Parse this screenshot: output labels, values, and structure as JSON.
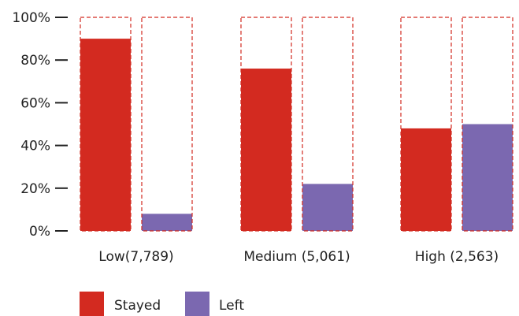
{
  "chart_data": {
    "type": "bar",
    "categories": [
      "Low(7,789)",
      "Medium (5,061)",
      "High (2,563)"
    ],
    "series": [
      {
        "name": "Stayed",
        "color": "#d32a20",
        "values": [
          90,
          76,
          48
        ]
      },
      {
        "name": "Left",
        "color": "#7b68b0",
        "values": [
          8,
          22,
          50
        ]
      }
    ],
    "ylim": [
      0,
      100
    ],
    "yticks": [
      "0%",
      "20%",
      "40%",
      "60%",
      "80%",
      "100%"
    ],
    "outline_color": "#d32a20",
    "outline_style": "dashed",
    "grid": false,
    "legend_position": "bottom-left"
  }
}
